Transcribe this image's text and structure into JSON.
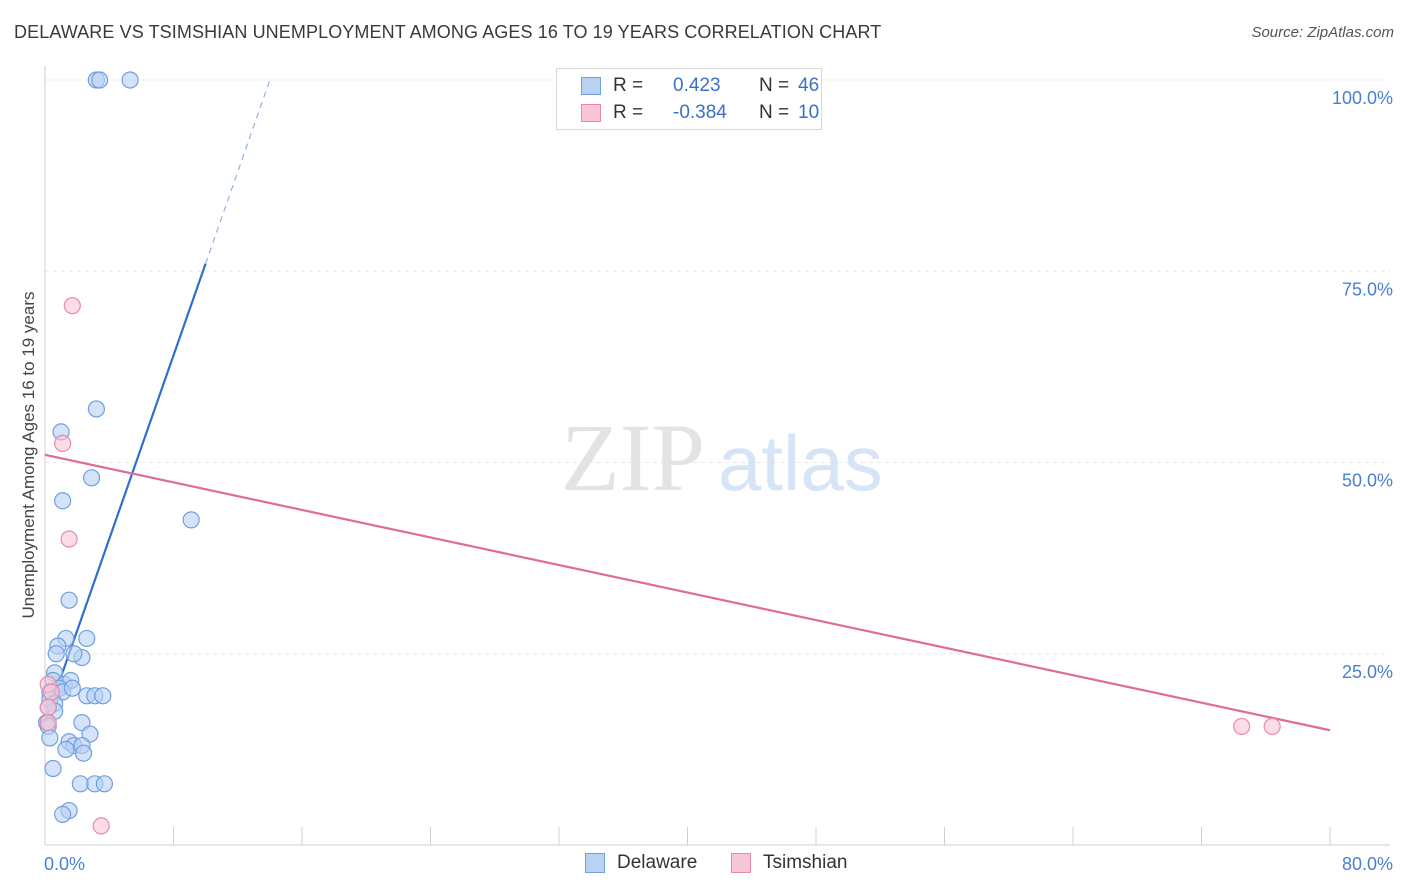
{
  "title": "DELAWARE VS TSIMSHIAN UNEMPLOYMENT AMONG AGES 16 TO 19 YEARS CORRELATION CHART",
  "source": "Source: ZipAtlas.com",
  "watermark": {
    "zip": "ZIP",
    "atlas": "atlas"
  },
  "legend": {
    "rows": [
      {
        "label": "R =",
        "r": "0.423",
        "n_label": "N =",
        "n": "46"
      },
      {
        "label": "R =",
        "r": "-0.384",
        "n_label": "N =",
        "n": "10"
      }
    ]
  },
  "chart_data": {
    "type": "scatter",
    "title": "DELAWARE VS TSIMSHIAN UNEMPLOYMENT AMONG AGES 16 TO 19 YEARS CORRELATION CHART",
    "xlabel": "",
    "ylabel": "Unemployment Among Ages 16 to 19 years",
    "xlim": [
      0,
      80
    ],
    "ylim": [
      0,
      100
    ],
    "x_tick_labels": [
      "0.0%",
      "80.0%"
    ],
    "y_tick_labels": [
      "25.0%",
      "50.0%",
      "75.0%",
      "100.0%"
    ],
    "y_ticks": [
      25,
      50,
      75,
      100
    ],
    "x_minor_ticks": [
      8,
      16,
      24,
      32,
      40,
      48,
      56,
      64,
      72,
      80
    ],
    "grid": true,
    "legend_position": "top-center",
    "series": [
      {
        "name": "Delaware",
        "color": "#6f9fe0",
        "fill": "#b9d1f3",
        "trend_color": "#2f6fce",
        "R": 0.423,
        "N": 46,
        "trend": {
          "x0": 0,
          "y0": 16,
          "x1": 10.0,
          "y1": 76,
          "dash_x1": 14.0,
          "dash_y1": 100
        },
        "points": [
          [
            3.2,
            100
          ],
          [
            3.4,
            100
          ],
          [
            5.3,
            100
          ],
          [
            3.2,
            57
          ],
          [
            1.0,
            54
          ],
          [
            2.9,
            48
          ],
          [
            1.1,
            45
          ],
          [
            9.1,
            42.5
          ],
          [
            1.5,
            32
          ],
          [
            2.6,
            27
          ],
          [
            1.3,
            27
          ],
          [
            0.8,
            26
          ],
          [
            0.7,
            25
          ],
          [
            2.3,
            24.5
          ],
          [
            1.8,
            25
          ],
          [
            0.6,
            22.5
          ],
          [
            0.5,
            21.5
          ],
          [
            1.2,
            21
          ],
          [
            1.6,
            21.5
          ],
          [
            0.9,
            20.5
          ],
          [
            0.3,
            20
          ],
          [
            1.1,
            20
          ],
          [
            1.7,
            20.5
          ],
          [
            2.6,
            19.5
          ],
          [
            3.1,
            19.5
          ],
          [
            3.6,
            19.5
          ],
          [
            0.3,
            19
          ],
          [
            0.6,
            18.5
          ],
          [
            0.6,
            17.5
          ],
          [
            0.2,
            18
          ],
          [
            0.1,
            16
          ],
          [
            0.2,
            15.5
          ],
          [
            2.3,
            16
          ],
          [
            0.3,
            14
          ],
          [
            2.8,
            14.5
          ],
          [
            1.5,
            13.5
          ],
          [
            1.8,
            13
          ],
          [
            1.3,
            12.5
          ],
          [
            2.3,
            13
          ],
          [
            2.4,
            12
          ],
          [
            0.5,
            10
          ],
          [
            2.2,
            8
          ],
          [
            3.1,
            8
          ],
          [
            3.7,
            8
          ],
          [
            1.5,
            4.5
          ],
          [
            1.1,
            4
          ]
        ]
      },
      {
        "name": "Tsimshian",
        "color": "#e98aa8",
        "fill": "#f8c6d6",
        "trend_color": "#e06c93",
        "R": -0.384,
        "N": 10,
        "trend": {
          "x0": 0,
          "y0": 51,
          "x1": 80,
          "y1": 15
        },
        "points": [
          [
            1.7,
            70.5
          ],
          [
            1.1,
            52.5
          ],
          [
            1.5,
            40
          ],
          [
            0.2,
            21
          ],
          [
            0.4,
            20
          ],
          [
            0.2,
            18
          ],
          [
            0.2,
            16
          ],
          [
            3.5,
            2.5
          ],
          [
            74.5,
            15.5
          ],
          [
            76.4,
            15.5
          ]
        ]
      }
    ]
  }
}
